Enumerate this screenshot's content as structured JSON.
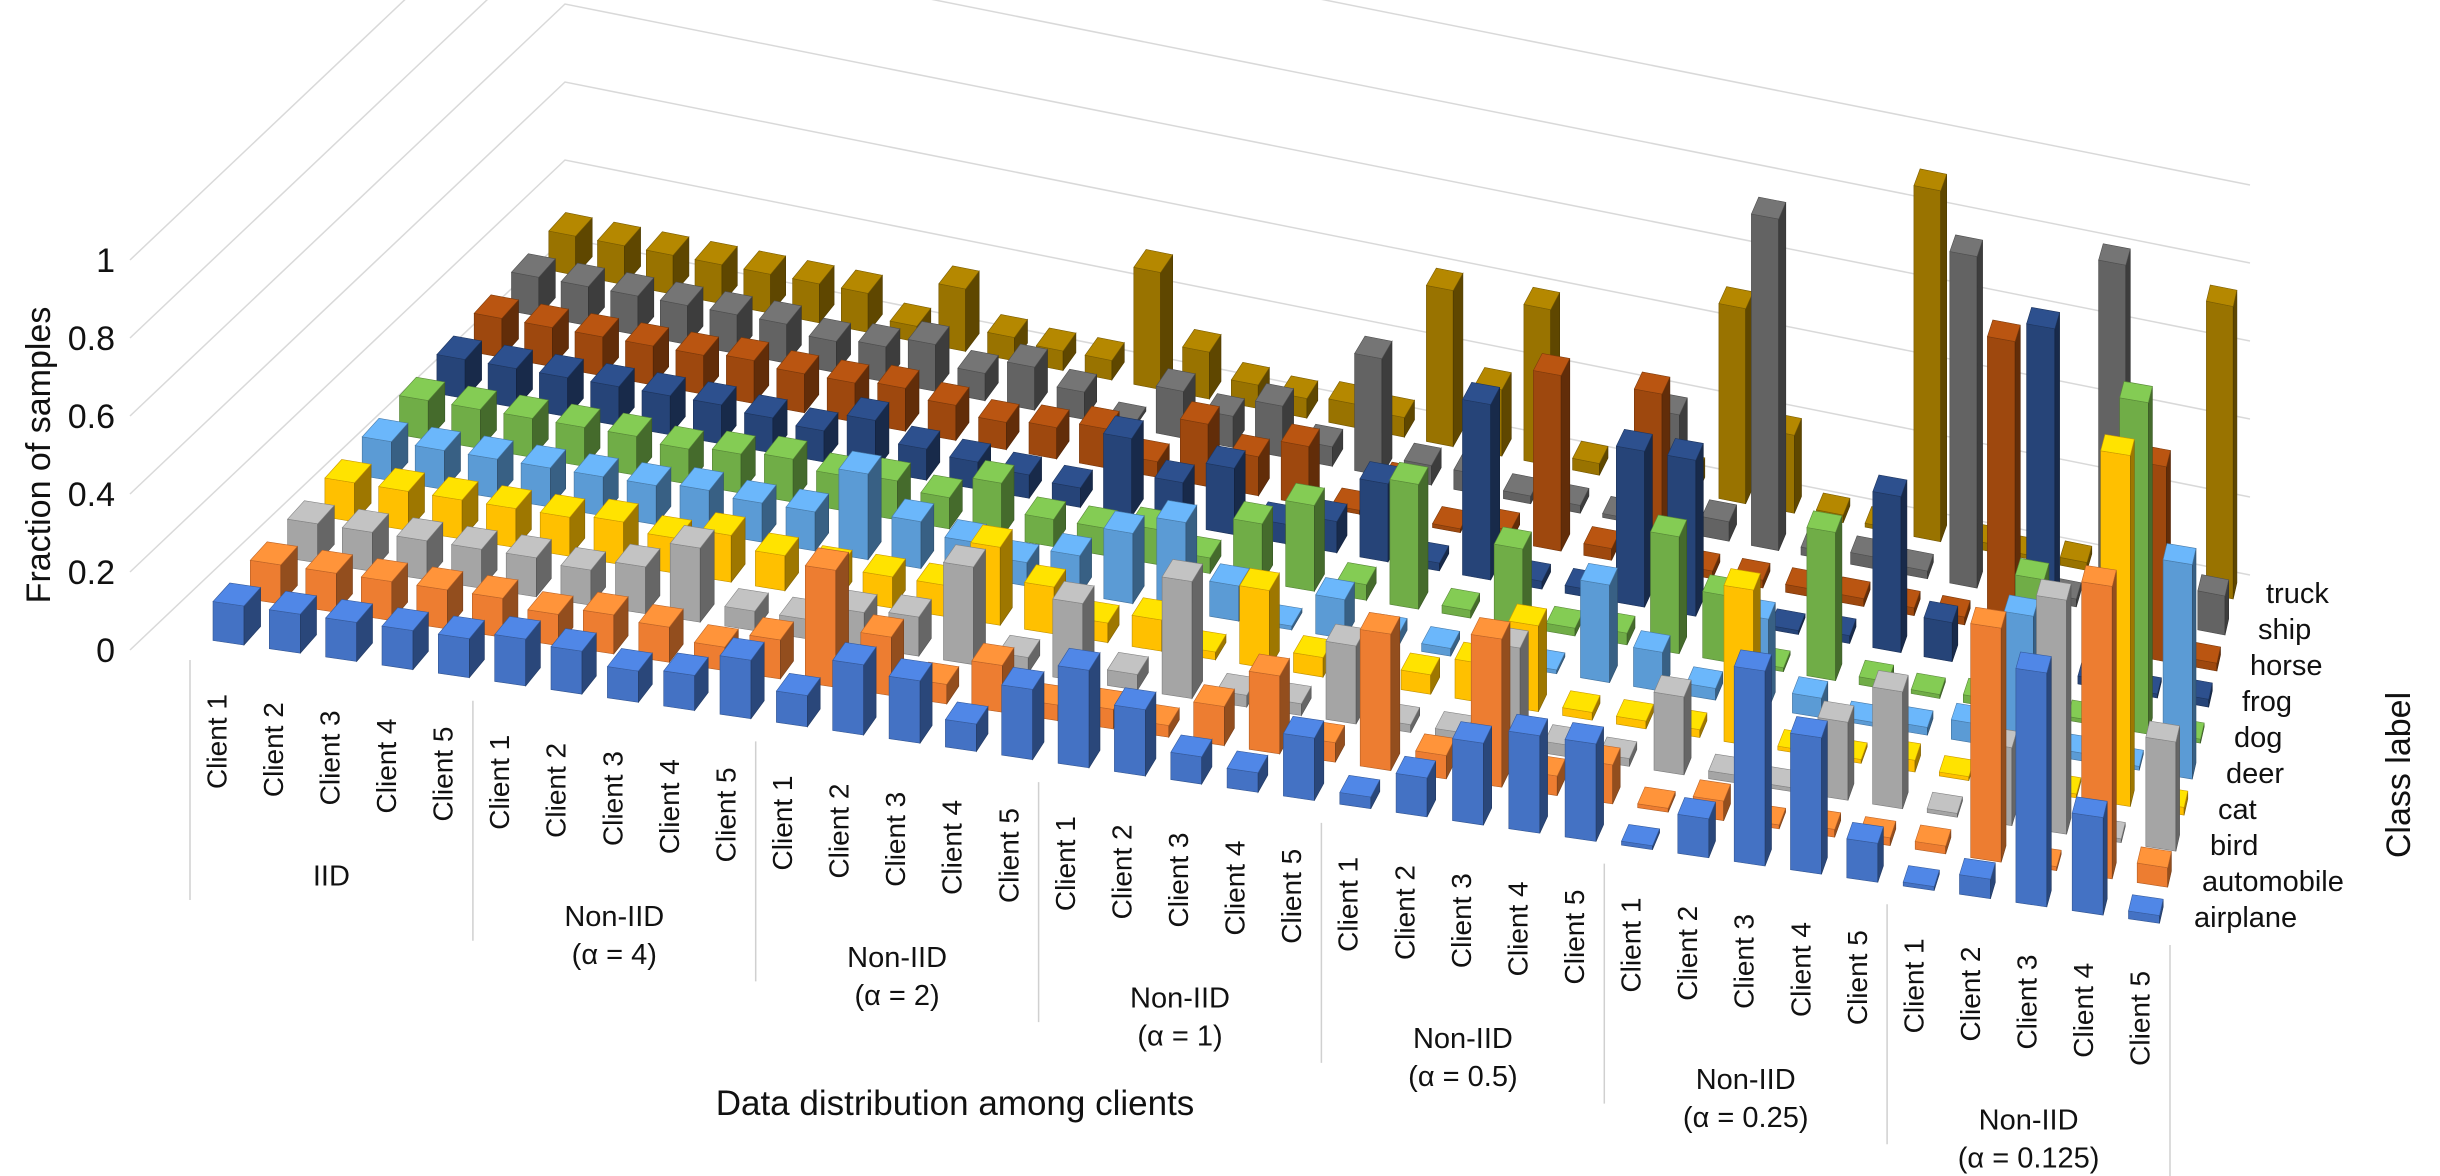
{
  "chart_data": {
    "type": "bar3d",
    "title": "",
    "ylabel": "Fraction of samples",
    "xlabel": "Data distribution among clients",
    "zlabel": "Class label",
    "ylim": [
      0,
      1
    ],
    "yticks": [
      0,
      0.2,
      0.4,
      0.6,
      0.8,
      1
    ],
    "ytick_labels": [
      "0",
      "0.2",
      "0.4",
      "0.6",
      "0.8",
      "1"
    ],
    "classes": [
      "airplane",
      "automobile",
      "bird",
      "cat",
      "deer",
      "dog",
      "frog",
      "horse",
      "ship",
      "truck"
    ],
    "colors": {
      "airplane": "#4472C4",
      "automobile": "#ED7D31",
      "bird": "#A5A5A5",
      "cat": "#FFC000",
      "deer": "#5B9BD5",
      "dog": "#70AD47",
      "frog": "#264478",
      "horse": "#9E480E",
      "ship": "#636363",
      "truck": "#997300"
    },
    "client_labels": [
      "Client 1",
      "Client 2",
      "Client 3",
      "Client 4",
      "Client 5"
    ],
    "groups": [
      {
        "label": [
          "IID"
        ],
        "values": [
          [
            0.1,
            0.1,
            0.1,
            0.1,
            0.1,
            0.1,
            0.1,
            0.1,
            0.1,
            0.1
          ],
          [
            0.1,
            0.1,
            0.1,
            0.1,
            0.1,
            0.1,
            0.1,
            0.1,
            0.1,
            0.1
          ],
          [
            0.1,
            0.1,
            0.1,
            0.1,
            0.1,
            0.1,
            0.1,
            0.1,
            0.1,
            0.1
          ],
          [
            0.1,
            0.1,
            0.1,
            0.1,
            0.1,
            0.1,
            0.1,
            0.1,
            0.1,
            0.1
          ],
          [
            0.1,
            0.1,
            0.1,
            0.1,
            0.1,
            0.1,
            0.1,
            0.1,
            0.1,
            0.1
          ]
        ]
      },
      {
        "label": [
          "Non-IID",
          "(α = 4)"
        ],
        "values": [
          [
            0.12,
            0.08,
            0.09,
            0.11,
            0.1,
            0.09,
            0.1,
            0.11,
            0.1,
            0.1
          ],
          [
            0.11,
            0.1,
            0.12,
            0.09,
            0.11,
            0.1,
            0.09,
            0.1,
            0.08,
            0.1
          ],
          [
            0.08,
            0.09,
            0.19,
            0.12,
            0.1,
            0.11,
            0.08,
            0.1,
            0.09,
            0.04
          ],
          [
            0.09,
            0.06,
            0.05,
            0.09,
            0.1,
            0.09,
            0.13,
            0.11,
            0.12,
            0.16
          ],
          [
            0.15,
            0.1,
            0.05,
            0.08,
            0.22,
            0.1,
            0.08,
            0.09,
            0.07,
            0.06
          ]
        ]
      },
      {
        "label": [
          "Non-IID",
          "(α = 2)"
        ],
        "values": [
          [
            0.08,
            0.3,
            0.09,
            0.08,
            0.12,
            0.08,
            0.07,
            0.07,
            0.11,
            0.05
          ],
          [
            0.18,
            0.15,
            0.1,
            0.08,
            0.09,
            0.14,
            0.06,
            0.08,
            0.07,
            0.05
          ],
          [
            0.16,
            0.05,
            0.25,
            0.2,
            0.06,
            0.07,
            0.05,
            0.1,
            0.01,
            0.3
          ],
          [
            0.07,
            0.12,
            0.04,
            0.12,
            0.1,
            0.07,
            0.2,
            0.04,
            0.12,
            0.12
          ],
          [
            0.18,
            0.04,
            0.2,
            0.05,
            0.18,
            0.09,
            0.11,
            0.16,
            0.08,
            0.06
          ]
        ]
      },
      {
        "label": [
          "Non-IID",
          "(α = 1)"
        ],
        "values": [
          [
            0.25,
            0.05,
            0.04,
            0.08,
            0.23,
            0.04,
            0.17,
            0.1,
            0.13,
            0.05
          ],
          [
            0.17,
            0.03,
            0.3,
            0.02,
            0.09,
            0.15,
            0.05,
            0.15,
            0.05,
            0.06
          ],
          [
            0.07,
            0.1,
            0.03,
            0.2,
            0.01,
            0.22,
            0.08,
            0.01,
            0.3,
            0.05
          ],
          [
            0.05,
            0.2,
            0.03,
            0.05,
            0.1,
            0.04,
            0.2,
            0.1,
            0.05,
            0.4
          ],
          [
            0.16,
            0.05,
            0.2,
            0.05,
            0.03,
            0.32,
            0.02,
            0.01,
            0.05,
            0.17
          ]
        ]
      },
      {
        "label": [
          "Non-IID",
          "(α = 0.5)"
        ],
        "values": [
          [
            0.03,
            0.35,
            0.02,
            0.05,
            0.02,
            0.02,
            0.45,
            0.03,
            0.02,
            0.4
          ],
          [
            0.1,
            0.06,
            0.02,
            0.1,
            0.03,
            0.2,
            0.02,
            0.45,
            0.02,
            0.03
          ],
          [
            0.21,
            0.38,
            0.26,
            0.22,
            0.01,
            0.02,
            0.02,
            0.03,
            0.01,
            0.02
          ],
          [
            0.25,
            0.05,
            0.03,
            0.02,
            0.25,
            0.03,
            0.4,
            0.45,
            0.3,
            0.05
          ],
          [
            0.25,
            0.1,
            0.02,
            0.02,
            0.1,
            0.3,
            0.4,
            0.02,
            0.05,
            0.5
          ]
        ]
      },
      {
        "label": [
          "Non-IID",
          "(α = 0.25)"
        ],
        "values": [
          [
            0.01,
            0.01,
            0.2,
            0.02,
            0.03,
            0.17,
            0.01,
            0.02,
            0.85,
            0.2
          ],
          [
            0.1,
            0.05,
            0.02,
            0.4,
            0.23,
            0.01,
            0.01,
            0.02,
            0.02,
            0.02
          ],
          [
            0.5,
            0.01,
            0.01,
            0.01,
            0.05,
            0.38,
            0.02,
            0.02,
            0.03,
            0.01
          ],
          [
            0.35,
            0.02,
            0.2,
            0.01,
            0.01,
            0.02,
            0.4,
            0.02,
            0.02,
            0.9
          ],
          [
            0.1,
            0.02,
            0.3,
            0.03,
            0.02,
            0.01,
            0.1,
            0.02,
            0.85,
            0.02
          ]
        ]
      },
      {
        "label": [
          "Non-IID",
          "(α = 0.125)"
        ],
        "values": [
          [
            0.01,
            0.02,
            0.01,
            0.01,
            0.05,
            0.02,
            0.1,
            0.75,
            0.02,
            0.01
          ],
          [
            0.05,
            0.6,
            0.2,
            0.01,
            0.35,
            0.35,
            0.9,
            0.02,
            0.02,
            0.02
          ],
          [
            0.6,
            0.01,
            0.6,
            0.01,
            0.02,
            0.01,
            0.02,
            0.02,
            0.9,
            0.01
          ],
          [
            0.25,
            0.75,
            0.01,
            0.9,
            0.01,
            0.85,
            0.01,
            0.5,
            0.01,
            0.02
          ],
          [
            0.02,
            0.05,
            0.28,
            0.02,
            0.55,
            0.01,
            0.02,
            0.02,
            0.1,
            0.75
          ]
        ]
      }
    ]
  }
}
